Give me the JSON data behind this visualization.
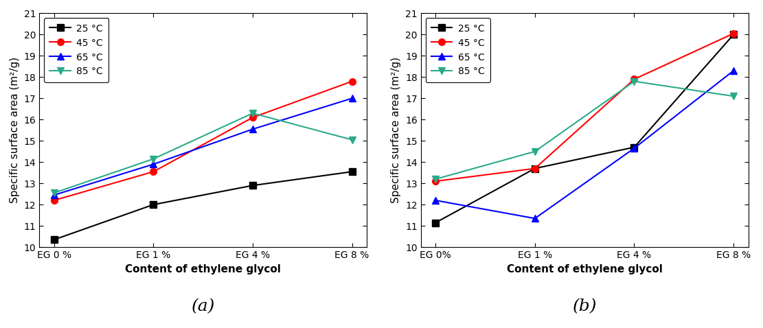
{
  "chart_a": {
    "x_labels": [
      "EG 0 %",
      "EG 1 %",
      "EG 4 %",
      "EG 8 %"
    ],
    "series": [
      {
        "label": "25 °C",
        "color": "black",
        "marker": "s",
        "values": [
          10.35,
          12.0,
          12.9,
          13.55
        ]
      },
      {
        "label": "45 °C",
        "color": "red",
        "marker": "o",
        "values": [
          12.2,
          13.55,
          16.1,
          17.8
        ]
      },
      {
        "label": "65 °C",
        "color": "blue",
        "marker": "^",
        "values": [
          12.45,
          13.9,
          15.55,
          17.0
        ]
      },
      {
        "label": "85 °C",
        "color": "#2aaa8a",
        "marker": "v",
        "values": [
          12.55,
          14.15,
          16.3,
          15.05
        ]
      }
    ],
    "ylim": [
      10,
      21
    ],
    "yticks": [
      10,
      11,
      12,
      13,
      14,
      15,
      16,
      17,
      18,
      19,
      20,
      21
    ],
    "ylabel": "Specific surface area (m²/g)",
    "xlabel": "Content of ethylene glycol",
    "sublabel": "(a)"
  },
  "chart_b": {
    "x_labels": [
      "EG 0%",
      "EG 1 %",
      "EG 4 %",
      "EG 8 %"
    ],
    "series": [
      {
        "label": "25 °C",
        "color": "black",
        "marker": "s",
        "values": [
          11.15,
          13.7,
          14.7,
          20.0
        ]
      },
      {
        "label": "45 °C",
        "color": "red",
        "marker": "o",
        "values": [
          13.1,
          13.7,
          17.9,
          20.05
        ]
      },
      {
        "label": "65 °C",
        "color": "blue",
        "marker": "^",
        "values": [
          12.2,
          11.35,
          14.65,
          18.3
        ]
      },
      {
        "label": "85 °C",
        "color": "#2aaa8a",
        "marker": "v",
        "values": [
          13.2,
          14.5,
          17.8,
          17.1
        ]
      }
    ],
    "ylim": [
      10,
      21
    ],
    "yticks": [
      10,
      11,
      12,
      13,
      14,
      15,
      16,
      17,
      18,
      19,
      20,
      21
    ],
    "ylabel": "Specific surface area (m²/g)",
    "xlabel": "Content of ethylene glycol",
    "sublabel": "(b)"
  },
  "figsize": [
    11.11,
    4.78
  ],
  "dpi": 100,
  "linewidth": 1.5,
  "markersize": 7,
  "tick_fontsize": 10,
  "label_fontsize": 11,
  "legend_fontsize": 10,
  "sublabel_fontsize": 18
}
